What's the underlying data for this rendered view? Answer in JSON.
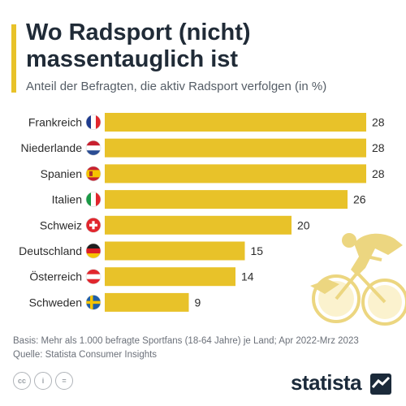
{
  "header": {
    "title": "Wo Radsport (nicht) massentauglich ist",
    "subtitle": "Anteil der Befragten, die aktiv Radsport verfolgen (in %)"
  },
  "colors": {
    "bar": "#e8c229",
    "accent": "#e8c229",
    "text": "#2b2b2b"
  },
  "chart_data": {
    "type": "bar",
    "orientation": "horizontal",
    "categories": [
      "Frankreich",
      "Niederlande",
      "Spanien",
      "Italien",
      "Schweiz",
      "Deutschland",
      "Österreich",
      "Schweden"
    ],
    "values": [
      28,
      28,
      28,
      26,
      20,
      15,
      14,
      9
    ],
    "flags": [
      "france-flag-icon",
      "netherlands-flag-icon",
      "spain-flag-icon",
      "italy-flag-icon",
      "switzerland-flag-icon",
      "germany-flag-icon",
      "austria-flag-icon",
      "sweden-flag-icon"
    ],
    "title": "Wo Radsport (nicht) massentauglich ist",
    "subtitle": "Anteil der Befragten, die aktiv Radsport verfolgen (in %)",
    "xlim": [
      0,
      28
    ],
    "grid": false,
    "data_labels": true
  },
  "footer": {
    "basis": "Basis: Mehr als 1.000 befragte Sportfans (18-64 Jahre) je Land; Apr 2022-Mrz 2023",
    "source": "Quelle: Statista Consumer Insights",
    "license_icons": [
      "cc",
      "i",
      "="
    ],
    "brand": "statista"
  }
}
